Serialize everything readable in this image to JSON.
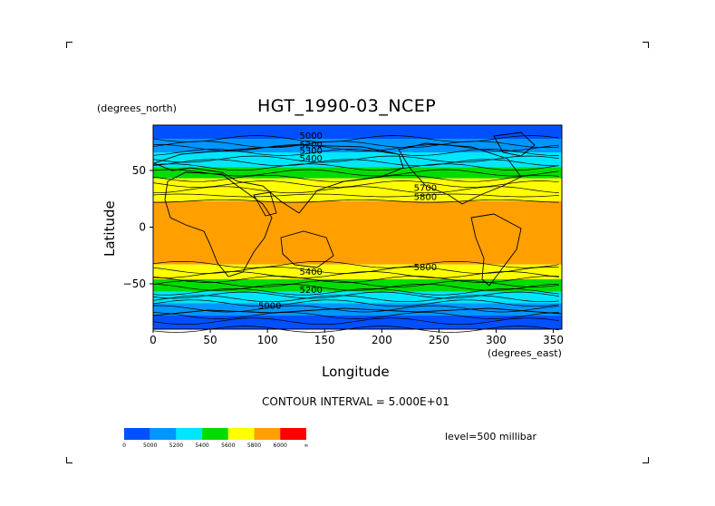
{
  "chart_data": {
    "type": "heatmap",
    "title": "HGT_1990-03_NCEP",
    "xlabel": "Longitude",
    "ylabel": "Latitude",
    "x_units": "(degrees_east)",
    "y_units": "(degrees_north)",
    "xlim": [
      0,
      357.5
    ],
    "ylim": [
      -90,
      90
    ],
    "x_ticks": [
      "0",
      "50",
      "100",
      "150",
      "200",
      "250",
      "300",
      "350"
    ],
    "y_ticks": [
      "50",
      "0",
      "−50"
    ],
    "contour_interval_text": "CONTOUR INTERVAL = 5.000E+01",
    "level_text": "level=500 millibar",
    "contour_labels": [
      {
        "text": "5000",
        "lon": 128,
        "lat": 78
      },
      {
        "text": "5200",
        "lon": 128,
        "lat": 70
      },
      {
        "text": "5300",
        "lon": 128,
        "lat": 65
      },
      {
        "text": "5400",
        "lon": 128,
        "lat": 58
      },
      {
        "text": "5700",
        "lon": 228,
        "lat": 32
      },
      {
        "text": "5800",
        "lon": 228,
        "lat": 24
      },
      {
        "text": "5800",
        "lon": 228,
        "lat": -38
      },
      {
        "text": "5400",
        "lon": 128,
        "lat": -42
      },
      {
        "text": "5200",
        "lon": 128,
        "lat": -58
      },
      {
        "text": "5000",
        "lon": 92,
        "lat": -72
      }
    ],
    "levels": [
      {
        "label": "0",
        "color": "#0050ff"
      },
      {
        "label": "5000",
        "color": "#0096ff"
      },
      {
        "label": "5200",
        "color": "#00e6ff"
      },
      {
        "label": "5400",
        "color": "#00dc00"
      },
      {
        "label": "5600",
        "color": "#ffff00"
      },
      {
        "label": "5800",
        "color": "#ffa000"
      },
      {
        "label": "6000",
        "color": "#ff0000"
      },
      {
        "label": "∞",
        "color": ""
      }
    ],
    "latitude_bands": [
      {
        "lat_from": 90,
        "lat_to": 78,
        "color": "#0050ff"
      },
      {
        "lat_from": 78,
        "lat_to": 66,
        "color": "#0096ff"
      },
      {
        "lat_from": 66,
        "lat_to": 53,
        "color": "#00e6ff"
      },
      {
        "lat_from": 53,
        "lat_to": 43,
        "color": "#00dc00"
      },
      {
        "lat_from": 43,
        "lat_to": 23,
        "color": "#ffff00"
      },
      {
        "lat_from": 23,
        "lat_to": -33,
        "color": "#ffa000"
      },
      {
        "lat_from": -33,
        "lat_to": -46,
        "color": "#ffff00"
      },
      {
        "lat_from": -46,
        "lat_to": -57,
        "color": "#00dc00"
      },
      {
        "lat_from": -57,
        "lat_to": -67,
        "color": "#00e6ff"
      },
      {
        "lat_from": -67,
        "lat_to": -78,
        "color": "#0096ff"
      },
      {
        "lat_from": -78,
        "lat_to": -90,
        "color": "#0050ff"
      }
    ]
  }
}
